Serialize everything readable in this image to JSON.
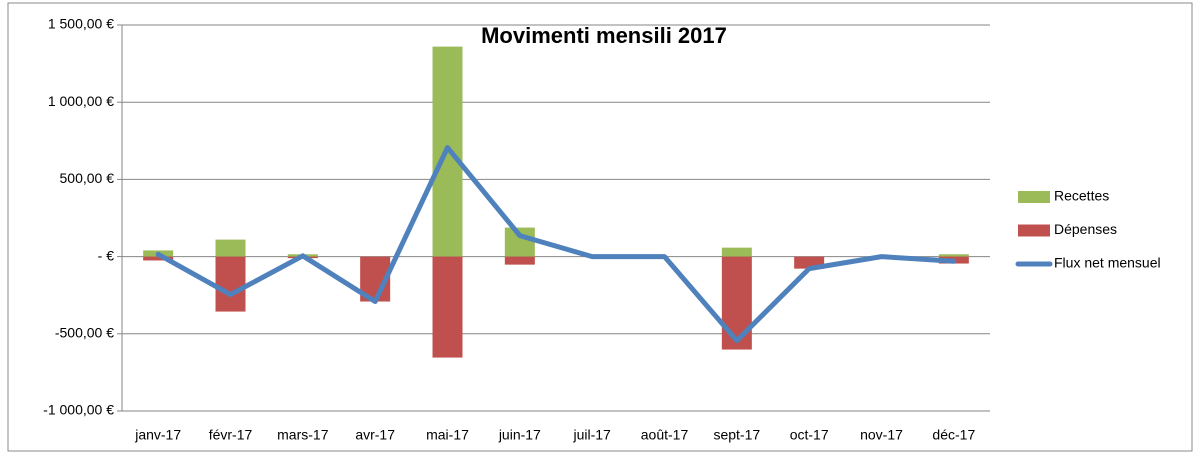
{
  "chart_data": {
    "type": "bar_line",
    "title": "Movimenti mensili 2017",
    "categories": [
      "janv-17",
      "févr-17",
      "mars-17",
      "avr-17",
      "mai-17",
      "juin-17",
      "juil-17",
      "août-17",
      "sept-17",
      "oct-17",
      "nov-17",
      "déc-17"
    ],
    "series": [
      {
        "name": "Recettes",
        "type": "bar",
        "color": "#9bbb59",
        "values": [
          40,
          110,
          15,
          0,
          1360,
          188,
          0,
          0,
          58,
          0,
          0,
          15
        ]
      },
      {
        "name": "Dépenses",
        "type": "bar",
        "color": "#c0504d",
        "values": [
          -25,
          -356,
          -10,
          -291,
          -654,
          -52,
          0,
          0,
          -602,
          -78,
          0,
          -45
        ]
      },
      {
        "name": "Flux net mensuel",
        "type": "line",
        "color": "#4f81bd",
        "values": [
          15,
          -246,
          5,
          -291,
          706,
          136,
          0,
          0,
          -544,
          -78,
          0,
          -30
        ]
      }
    ],
    "ylim": [
      -1000,
      1500
    ],
    "yticks": [
      {
        "value": -1000,
        "label": "-1 000,00 €"
      },
      {
        "value": -500,
        "label": "-500,00 €"
      },
      {
        "value": 0,
        "label": "-   €"
      },
      {
        "value": 500,
        "label": "500,00 €"
      },
      {
        "value": 1000,
        "label": "1 000,00 €"
      },
      {
        "value": 1500,
        "label": "1 500,00 €"
      }
    ],
    "grid": true,
    "legend": "right"
  }
}
